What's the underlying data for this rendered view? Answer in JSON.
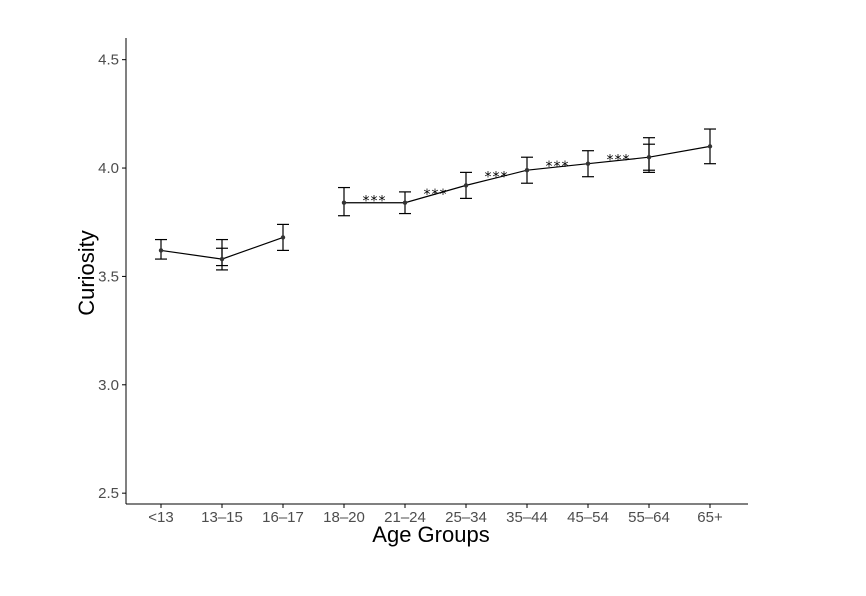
{
  "chart_data": {
    "type": "line",
    "title": "",
    "xlabel": "Age Groups",
    "ylabel": "Curiosity",
    "ylim": [
      2.45,
      4.6
    ],
    "yticks": [
      2.5,
      3.0,
      3.5,
      4.0,
      4.5
    ],
    "ytick_labels": [
      "2.5",
      "3.0",
      "3.5",
      "4.0",
      "4.5"
    ],
    "categories": [
      "<13",
      "13–15",
      "16–17",
      "18–20",
      "21–24",
      "25–34",
      "35–44",
      "45–54",
      "55–64",
      "65+"
    ],
    "grid": false,
    "series": [
      {
        "values": [
          3.62,
          3.58,
          3.68,
          3.84,
          3.84,
          3.92,
          3.99,
          4.02,
          4.05,
          4.1
        ],
        "error_low": [
          3.58,
          3.53,
          3.62,
          3.78,
          3.79,
          3.86,
          3.93,
          3.96,
          3.99,
          4.02
        ],
        "error_high": [
          3.67,
          3.63,
          3.74,
          3.91,
          3.89,
          3.98,
          4.05,
          4.08,
          4.11,
          4.18
        ]
      }
    ],
    "extra_error_bars": [
      {
        "category": "13–15",
        "low": 3.55,
        "high": 3.67
      },
      {
        "category": "55–64",
        "low": 3.98,
        "high": 4.14
      }
    ],
    "line_segments": [
      {
        "from": "<13",
        "to": "16–17"
      },
      {
        "from": "18–20",
        "to": "65+"
      }
    ],
    "annotations": [
      {
        "text": "***",
        "between": [
          "18–20",
          "21–24"
        ],
        "y": 3.85
      },
      {
        "text": "***",
        "between": [
          "21–24",
          "25–34"
        ],
        "y": 3.88
      },
      {
        "text": "***",
        "between": [
          "25–34",
          "35–44"
        ],
        "y": 3.96
      },
      {
        "text": "***",
        "between": [
          "35–44",
          "45–54"
        ],
        "y": 4.01
      },
      {
        "text": "***",
        "between": [
          "45–54",
          "55–64"
        ],
        "y": 4.04
      }
    ],
    "colors": {
      "line": "#000000",
      "point": "#333333",
      "axis": "#000000",
      "tick_label": "#4d4d4d"
    }
  }
}
